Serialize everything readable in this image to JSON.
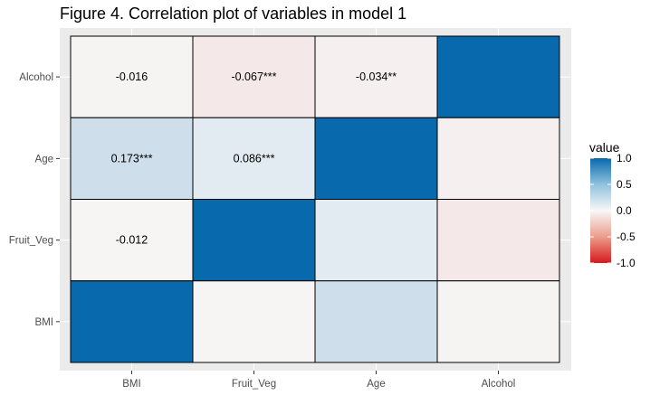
{
  "chart_data": {
    "type": "heatmap",
    "title": "Figure 4. Correlation plot of variables in model 1",
    "x_categories": [
      "BMI",
      "Fruit_Veg",
      "Age",
      "Alcohol"
    ],
    "y_categories": [
      "BMI",
      "Fruit_Veg",
      "Age",
      "Alcohol"
    ],
    "cells": [
      {
        "x": "BMI",
        "y": "Alcohol",
        "value": -0.016,
        "label": "-0.016"
      },
      {
        "x": "Fruit_Veg",
        "y": "Alcohol",
        "value": -0.067,
        "label": "-0.067***"
      },
      {
        "x": "Age",
        "y": "Alcohol",
        "value": -0.034,
        "label": "-0.034**"
      },
      {
        "x": "Alcohol",
        "y": "Alcohol",
        "value": 1.0,
        "label": ""
      },
      {
        "x": "BMI",
        "y": "Age",
        "value": 0.173,
        "label": "0.173***"
      },
      {
        "x": "Fruit_Veg",
        "y": "Age",
        "value": 0.086,
        "label": "0.086***"
      },
      {
        "x": "Age",
        "y": "Age",
        "value": 1.0,
        "label": ""
      },
      {
        "x": "Alcohol",
        "y": "Age",
        "value": -0.034,
        "label": ""
      },
      {
        "x": "BMI",
        "y": "Fruit_Veg",
        "value": -0.012,
        "label": "-0.012"
      },
      {
        "x": "Fruit_Veg",
        "y": "Fruit_Veg",
        "value": 1.0,
        "label": ""
      },
      {
        "x": "Age",
        "y": "Fruit_Veg",
        "value": 0.086,
        "label": ""
      },
      {
        "x": "Alcohol",
        "y": "Fruit_Veg",
        "value": -0.067,
        "label": ""
      },
      {
        "x": "BMI",
        "y": "BMI",
        "value": 1.0,
        "label": ""
      },
      {
        "x": "Fruit_Veg",
        "y": "BMI",
        "value": -0.012,
        "label": ""
      },
      {
        "x": "Age",
        "y": "BMI",
        "value": 0.173,
        "label": ""
      },
      {
        "x": "Alcohol",
        "y": "BMI",
        "value": -0.016,
        "label": ""
      }
    ],
    "legend": {
      "title": "value",
      "ticks": [
        "1.0",
        "0.5",
        "0.0",
        "-0.5",
        "-1.0"
      ],
      "range": [
        -1,
        1
      ],
      "placement": "right"
    },
    "colors": {
      "high": "#0869ad",
      "mid": "#f7f7f7",
      "low": "#d7191c",
      "panel_background": "#ebebeb",
      "grid": "#ffffff"
    },
    "grid": true
  }
}
